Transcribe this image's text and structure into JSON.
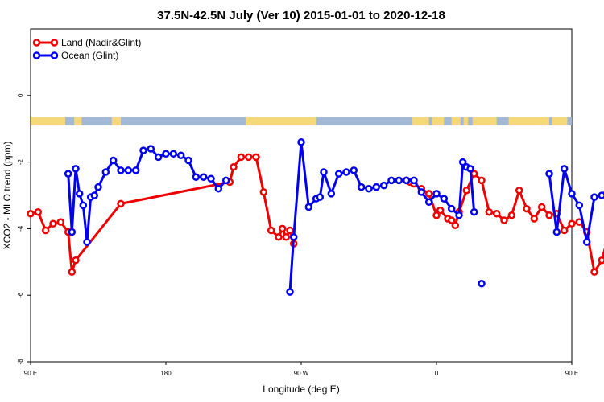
{
  "chart_data": {
    "type": "line",
    "title": "37.5N-42.5N July (Ver 10)   2015-01-01 to 2020-12-18",
    "xlabel": "Longitude (deg E)",
    "ylabel": "XCO2 - MLO trend (ppm)",
    "xlim": [
      90,
      450
    ],
    "ylim": [
      -8,
      2
    ],
    "x_ticks": [
      {
        "value": 90,
        "label": "90 E"
      },
      {
        "value": 180,
        "label": "180"
      },
      {
        "value": 270,
        "label": "90 W"
      },
      {
        "value": 360,
        "label": "0"
      },
      {
        "value": 450,
        "label": "90 E"
      },
      {
        "value": 540,
        "label": "180"
      }
    ],
    "y_ticks": [
      {
        "value": 0,
        "label": "0"
      },
      {
        "value": -2,
        "label": "-2"
      },
      {
        "value": -4,
        "label": "-4"
      },
      {
        "value": -6,
        "label": "-6"
      },
      {
        "value": -8,
        "label": "-8"
      }
    ],
    "grid": false,
    "legend_position": "top-left",
    "series": [
      {
        "name": "Land (Nadir&Glint)",
        "color": "#ee0000",
        "x": [
          90,
          95,
          100,
          105,
          110,
          115,
          117.5,
          120,
          150,
          222.5,
          225,
          230,
          235,
          240,
          245,
          250,
          255,
          257.5,
          260,
          262.5,
          265,
          267.5,
          270,
          295,
          340,
          342.5,
          345,
          350,
          355,
          360,
          362.5,
          367.5,
          370,
          372.5,
          375,
          380,
          385,
          390,
          395,
          400,
          405,
          410,
          415,
          420,
          425,
          430,
          435,
          440,
          445,
          450,
          455,
          460,
          465,
          470,
          480
        ],
        "y": [
          -3.55,
          -3.5,
          -4.05,
          -3.85,
          -3.8,
          -4.1,
          -5.3,
          -4.95,
          -3.25,
          -2.6,
          -2.15,
          -1.85,
          -1.85,
          -1.85,
          -2.9,
          -4.05,
          -4.25,
          -4.0,
          -4.25,
          -4.05,
          -4.45,
          null,
          null,
          null,
          -2.55,
          -2.6,
          -2.65,
          -2.8,
          -2.95,
          -3.6,
          -3.45,
          -3.7,
          -3.75,
          -3.9,
          -3.5,
          -2.85,
          -2.35,
          -2.55,
          -3.5,
          -3.55,
          -3.75,
          -3.6,
          -2.85,
          -3.4,
          -3.7,
          -3.35,
          -3.6,
          -3.55,
          -4.05,
          -3.85,
          -3.8,
          -4.1,
          -5.3,
          -4.95,
          -3.25
        ]
      },
      {
        "name": "Ocean (Glint)",
        "color": "#0000ee",
        "x": [
          115,
          117.5,
          120,
          122.5,
          125,
          127.5,
          130,
          132.5,
          135,
          140,
          145,
          150,
          155,
          160,
          165,
          170,
          175,
          180,
          185,
          190,
          195,
          200,
          205,
          210,
          215,
          220,
          225,
          230,
          235,
          240,
          245,
          250,
          262.5,
          265,
          270,
          275,
          280,
          282.5,
          285,
          290,
          295,
          300,
          305,
          310,
          315,
          320,
          325,
          330,
          335,
          340,
          345,
          350,
          355,
          360,
          365,
          370,
          375,
          377.5,
          380,
          382.5,
          385,
          387.5,
          390,
          395,
          400,
          405,
          410,
          415,
          420,
          425,
          430,
          435,
          440,
          445,
          450,
          455,
          460,
          465,
          470,
          475,
          477.5,
          480
        ],
        "y": [
          -2.35,
          -4.1,
          -2.2,
          -2.95,
          -3.3,
          -4.4,
          -3.05,
          -3.0,
          -2.75,
          -2.3,
          -1.95,
          -2.25,
          -2.25,
          -2.25,
          -1.65,
          -1.6,
          -1.85,
          -1.75,
          -1.75,
          -1.8,
          -1.95,
          -2.45,
          -2.45,
          -2.5,
          -2.8,
          -2.55,
          null,
          null,
          null,
          null,
          null,
          null,
          -5.9,
          -4.25,
          -1.4,
          -3.35,
          -3.1,
          -3.05,
          -2.3,
          -2.95,
          -2.35,
          -2.3,
          -2.25,
          -2.75,
          -2.8,
          -2.75,
          -2.7,
          -2.55,
          -2.55,
          -2.55,
          -2.55,
          -2.9,
          -3.2,
          -2.95,
          -3.1,
          -3.4,
          -3.6,
          -2.0,
          -2.15,
          -2.2,
          -3.5,
          null,
          -5.65,
          null,
          null,
          null,
          null,
          null,
          null,
          null,
          null,
          -2.35,
          -4.1,
          -2.2,
          -2.95,
          -3.3,
          -4.4,
          -3.05,
          -3.0,
          -2.75,
          -2.3,
          -1.95
        ]
      }
    ],
    "map_strip_y_range": [
      -0.65,
      -0.9
    ]
  }
}
